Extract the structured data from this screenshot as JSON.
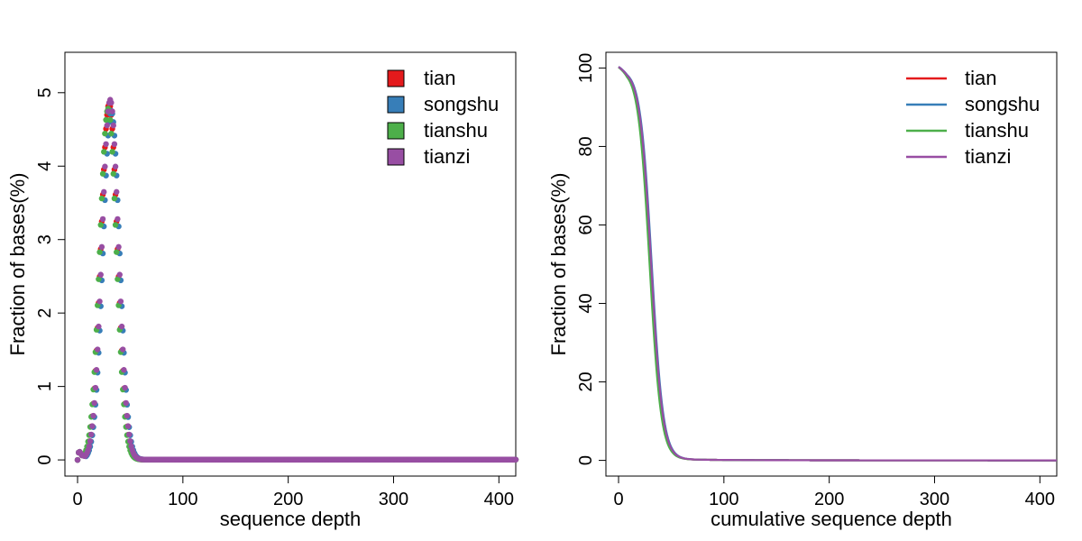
{
  "chart_data": [
    {
      "type": "scatter",
      "title": "",
      "xlabel": "sequence depth",
      "ylabel": "Fraction of bases(%)",
      "xlim": [
        -12,
        416
      ],
      "ylim": [
        -0.22,
        5.55
      ],
      "xticks": [
        0,
        100,
        200,
        300,
        400
      ],
      "yticks": [
        0,
        1,
        2,
        3,
        4,
        5
      ],
      "grid": false,
      "legend": "top-right",
      "x_max": 416,
      "series": [
        {
          "name": "tian",
          "color": "#E41A1C",
          "peak_x": 30,
          "peak_y": 4.85,
          "sigma": 7.8
        },
        {
          "name": "songshu",
          "color": "#377EB8",
          "peak_x": 32,
          "peak_y": 4.75,
          "sigma": 7.8
        },
        {
          "name": "tianshu",
          "color": "#4DAF4A",
          "peak_x": 29,
          "peak_y": 4.78,
          "sigma": 7.8
        },
        {
          "name": "tianzi",
          "color": "#984EA3",
          "peak_x": 31,
          "peak_y": 4.9,
          "sigma": 7.8
        }
      ]
    },
    {
      "type": "line",
      "title": "",
      "xlabel": "cumulative sequence depth",
      "ylabel": "Fraction of bases(%)",
      "xlim": [
        -12,
        416
      ],
      "ylim": [
        -4,
        104
      ],
      "xticks": [
        0,
        100,
        200,
        300,
        400
      ],
      "yticks": [
        0,
        20,
        40,
        60,
        80,
        100
      ],
      "grid": false,
      "legend": "top-right",
      "x_max": 416,
      "series": [
        {
          "name": "tian",
          "color": "#E41A1C",
          "mid_x": 30.5
        },
        {
          "name": "songshu",
          "color": "#377EB8",
          "mid_x": 31.5
        },
        {
          "name": "tianshu",
          "color": "#4DAF4A",
          "mid_x": 29.5
        },
        {
          "name": "tianzi",
          "color": "#984EA3",
          "mid_x": 31
        }
      ]
    }
  ]
}
